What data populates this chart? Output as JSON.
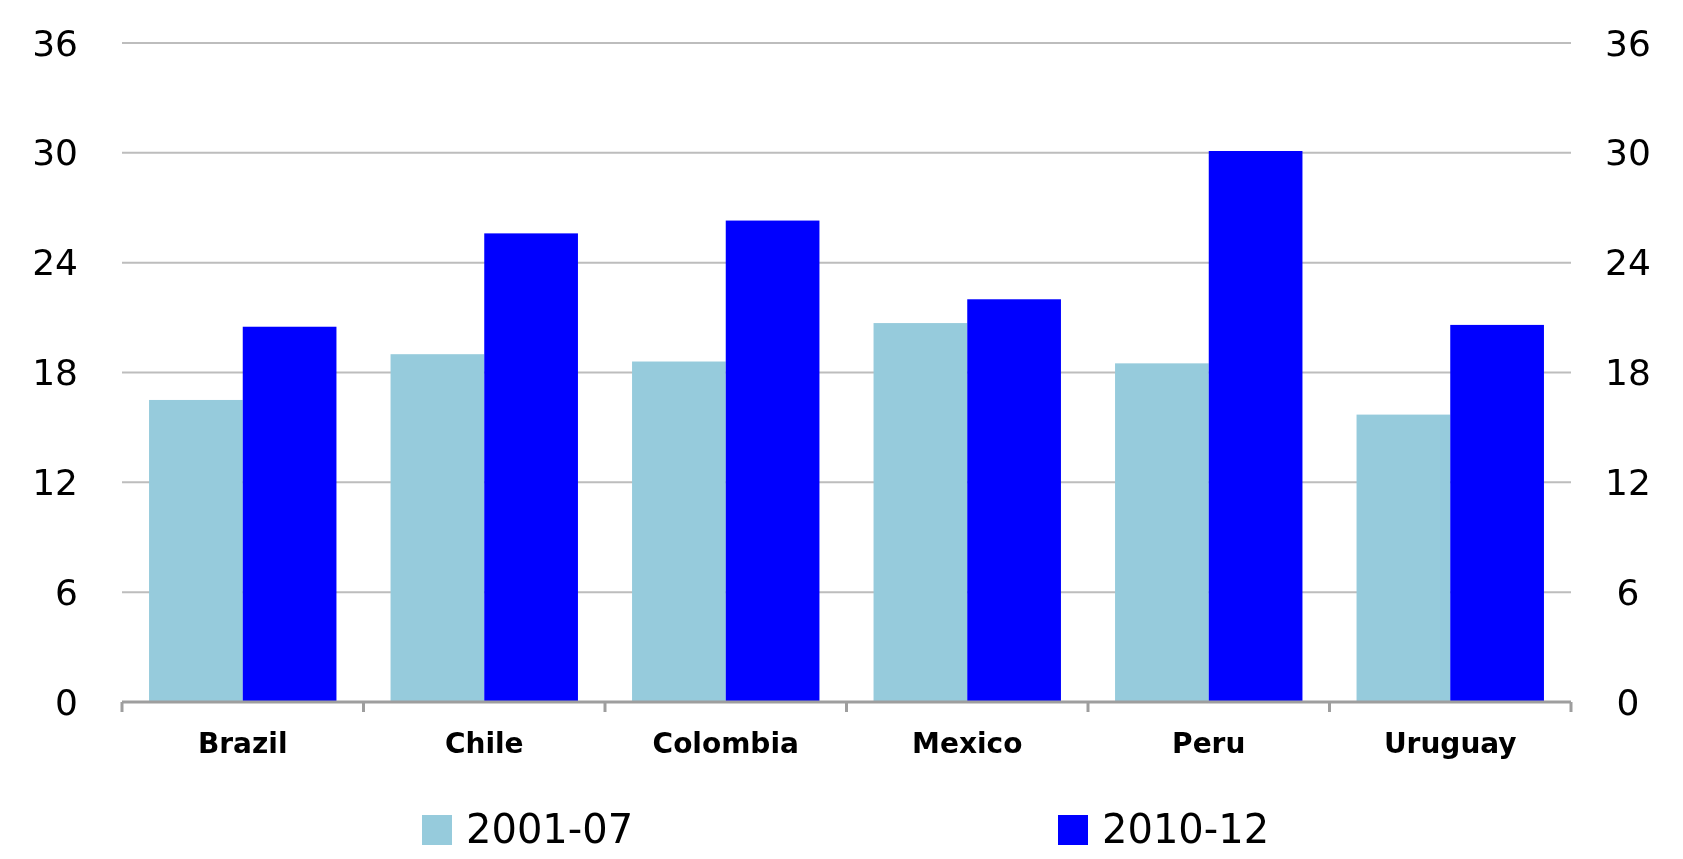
{
  "chart_data": {
    "type": "bar",
    "categories": [
      "Brazil",
      "Chile",
      "Colombia",
      "Mexico",
      "Peru",
      "Uruguay"
    ],
    "series": [
      {
        "name": "2001-07",
        "color": "#96cbdc",
        "values": [
          16.5,
          19.0,
          18.6,
          20.7,
          18.5,
          15.7
        ]
      },
      {
        "name": "2010-12",
        "color": "#0000ff",
        "values": [
          20.5,
          25.6,
          26.3,
          22.0,
          30.1,
          20.6
        ]
      }
    ],
    "ylim": [
      0,
      36
    ],
    "yticks": [
      0,
      6,
      12,
      18,
      24,
      30,
      36
    ],
    "y2lim": [
      0,
      36
    ],
    "y2ticks": [
      0,
      6,
      12,
      18,
      24,
      30,
      36
    ],
    "grid": "y",
    "legend": "bottom"
  }
}
